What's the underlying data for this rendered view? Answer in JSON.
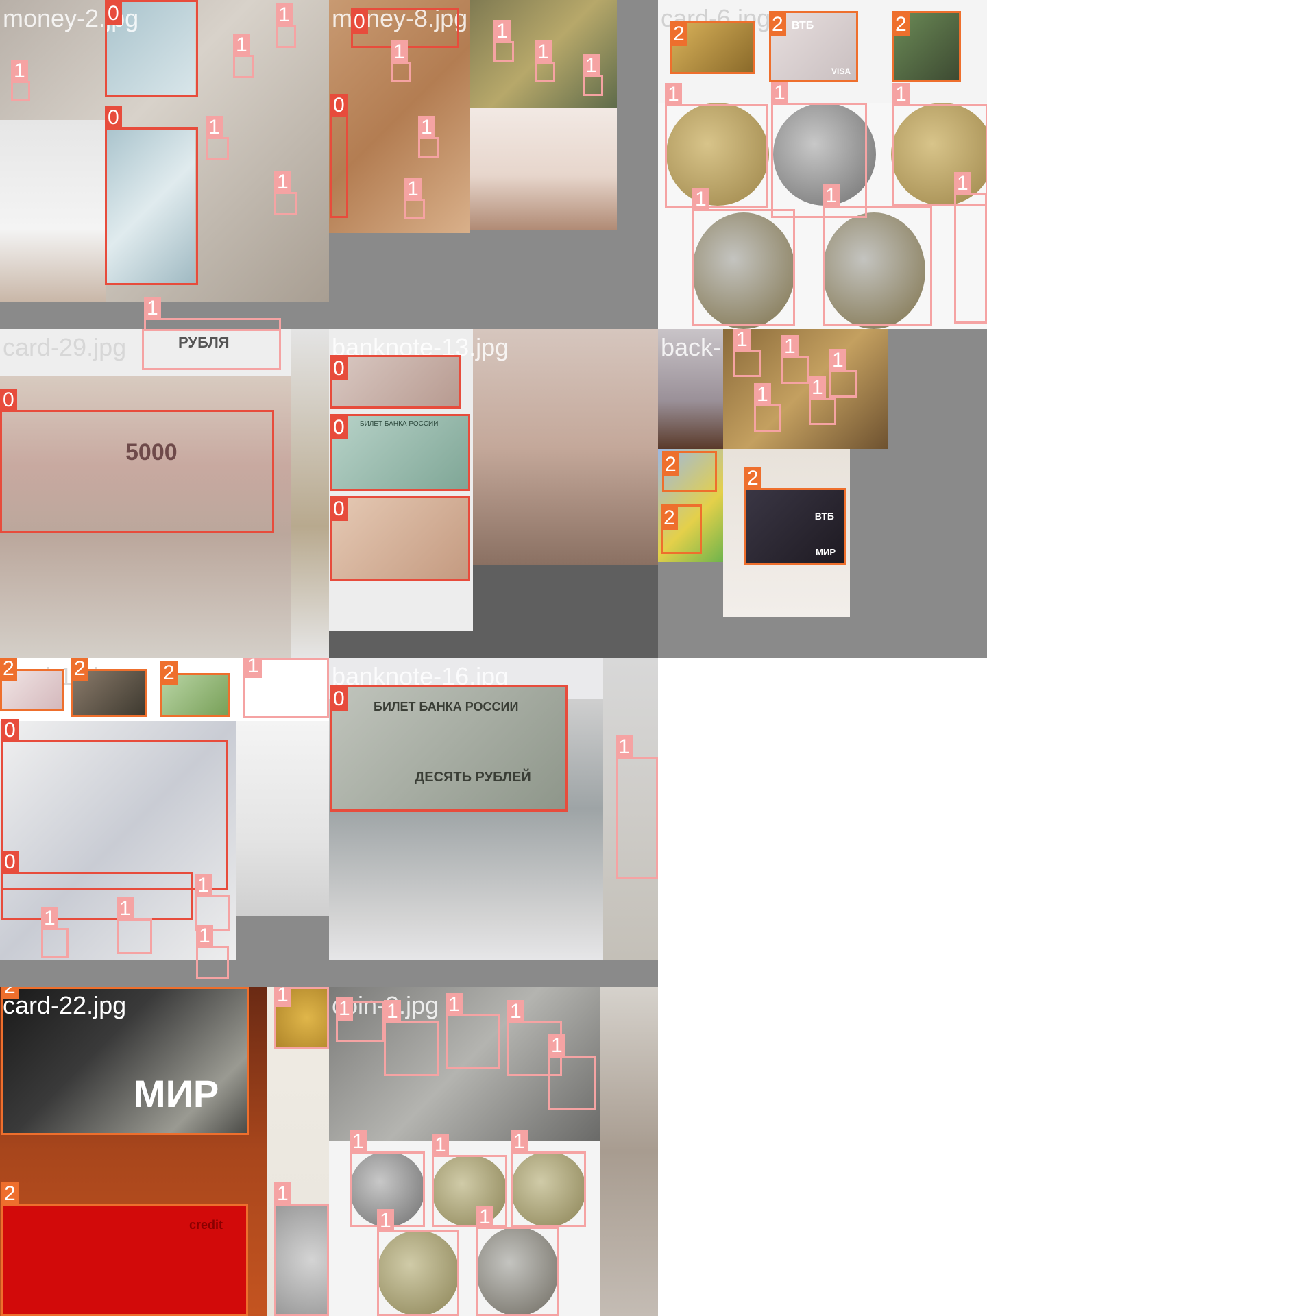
{
  "tiles": [
    {
      "file": "money-2.jpg"
    },
    {
      "file": "money-8.jpg"
    },
    {
      "file": "card-6.jpg"
    },
    {
      "file": "card-29.jpg"
    },
    {
      "file": "banknote-13.jpg"
    },
    {
      "file": "back-"
    },
    {
      "file": "card-10.jpg"
    },
    {
      "file": "banknote-16.jpg"
    },
    {
      "file": "card-22.jpg"
    },
    {
      "file": "coin-2.jpg"
    }
  ],
  "classes": {
    "banknote": "0",
    "coin": "1",
    "card": "2"
  },
  "colors": {
    "banknote": "#e74c3c",
    "coin": "#f5a3a3",
    "card": "#ee6f2d",
    "padding": "#8a8a8a"
  },
  "printed_on_items": {
    "vtb": "ВТБ",
    "visa": "VISA",
    "mir": "МИР",
    "credit": "credit",
    "bank_of_russia": "БИЛЕТ БАНКА РОССИИ",
    "desyat_rubley": "ДЕСЯТЬ РУБЛЕЙ",
    "pyat_tysyach": "5000",
    "rublya": "РУБЛЯ"
  }
}
